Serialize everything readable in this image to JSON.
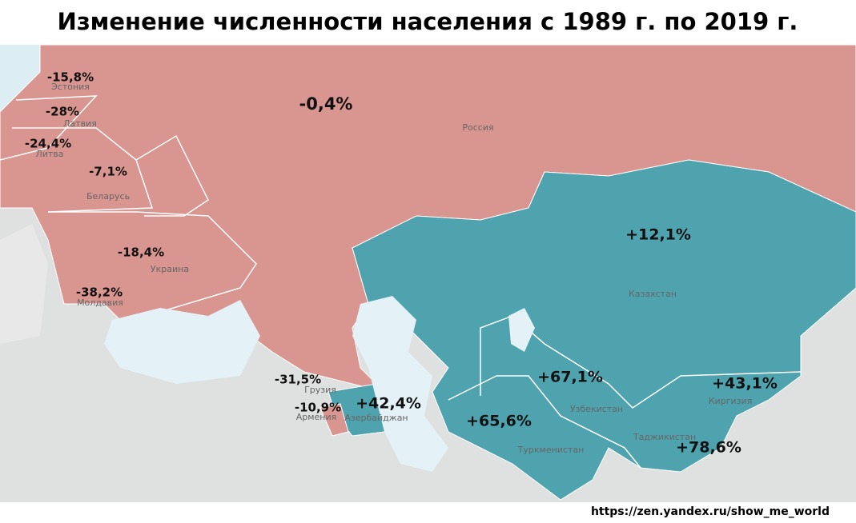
{
  "title": "Изменение численности населения с 1989 г. по 2019 г.",
  "regions": [
    {
      "name": "Эстония",
      "change": "-15,8%"
    },
    {
      "name": "Латвия",
      "change": "-28%"
    },
    {
      "name": "Литва",
      "change": "-24,4%"
    },
    {
      "name": "Беларусь",
      "change": "-7,1%"
    },
    {
      "name": "Украина",
      "change": "-18,4%"
    },
    {
      "name": "Молдавия",
      "change": "-38,2%"
    },
    {
      "name": "Россия",
      "change": "-0,4%"
    },
    {
      "name": "Грузия",
      "change": "-31,5%"
    },
    {
      "name": "Армения",
      "change": "-10,9%"
    },
    {
      "name": "Азербайджан",
      "change": "+42,4%"
    },
    {
      "name": "Казахстан",
      "change": "+12,1%"
    },
    {
      "name": "Узбекистан",
      "change": "+67,1%"
    },
    {
      "name": "Туркменистан",
      "change": "+65,6%"
    },
    {
      "name": "Киргизия",
      "change": "+43,1%"
    },
    {
      "name": "Таджикистан",
      "change": "+78,6%"
    }
  ],
  "source": "https://zen.yandex.ru/show_me_world"
}
